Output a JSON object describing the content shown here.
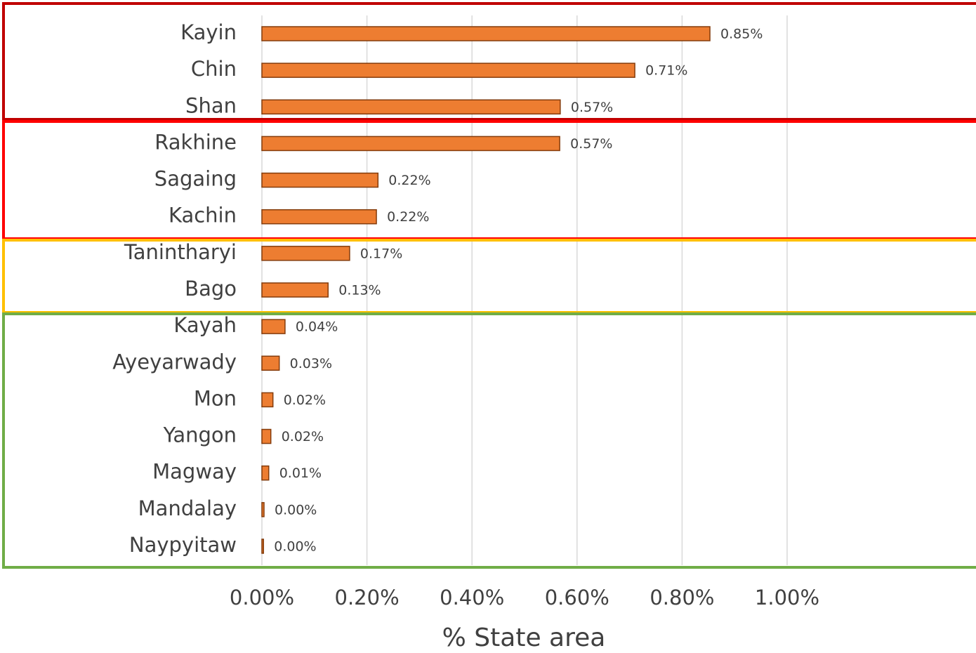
{
  "chart_data": {
    "type": "barh",
    "xlabel": "% State area",
    "categories": [
      "Kayin",
      "Chin",
      "Shan",
      "Rakhine",
      "Sagaing",
      "Kachin",
      "Tanintharyi",
      "Bago",
      "Kayah",
      "Ayeyarwady",
      "Mon",
      "Yangon",
      "Magway",
      "Mandalay",
      "Naypyitaw"
    ],
    "values": [
      0.853,
      0.71,
      0.568,
      0.567,
      0.221,
      0.218,
      0.167,
      0.126,
      0.044,
      0.033,
      0.021,
      0.017,
      0.013,
      0.004,
      0.003
    ],
    "value_labels": [
      "0.85%",
      "0.71%",
      "0.57%",
      "0.57%",
      "0.22%",
      "0.22%",
      "0.17%",
      "0.13%",
      "0.04%",
      "0.03%",
      "0.02%",
      "0.02%",
      "0.01%",
      "0.00%",
      "0.00%"
    ],
    "color": "#ed7d31",
    "xlim": [
      0,
      1.2
    ],
    "xticks": [
      {
        "value": 0,
        "label": "0.00%"
      },
      {
        "value": 0.2,
        "label": "0.20%"
      },
      {
        "value": 0.4,
        "label": "0.40%"
      },
      {
        "value": 0.6,
        "label": "0.60%"
      },
      {
        "value": 0.8,
        "label": "0.80%"
      },
      {
        "value": 1.0,
        "label": "1.00%"
      }
    ],
    "grid": true
  }
}
